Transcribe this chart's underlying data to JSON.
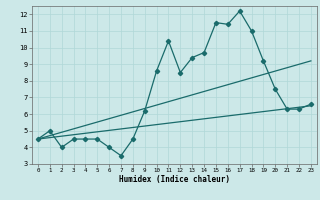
{
  "xlabel": "Humidex (Indice chaleur)",
  "xlim": [
    -0.5,
    23.5
  ],
  "ylim": [
    3,
    12.5
  ],
  "xticks": [
    0,
    1,
    2,
    3,
    4,
    5,
    6,
    7,
    8,
    9,
    10,
    11,
    12,
    13,
    14,
    15,
    16,
    17,
    18,
    19,
    20,
    21,
    22,
    23
  ],
  "yticks": [
    3,
    4,
    5,
    6,
    7,
    8,
    9,
    10,
    11,
    12
  ],
  "bg_color": "#cce8e8",
  "line_color": "#1a6b6b",
  "grid_color": "#b0d8d8",
  "line1_x": [
    0,
    1,
    2,
    3,
    4,
    5,
    6,
    7,
    8,
    9,
    10,
    11,
    12,
    13,
    14,
    15,
    16,
    17,
    18,
    19,
    20,
    21,
    22,
    23
  ],
  "line1_y": [
    4.5,
    5.0,
    4.0,
    4.5,
    4.5,
    4.5,
    4.0,
    3.5,
    4.5,
    6.2,
    8.6,
    10.4,
    8.5,
    9.4,
    9.7,
    11.5,
    11.4,
    12.2,
    11.0,
    9.2,
    7.5,
    6.3,
    6.3,
    6.6
  ],
  "line2_x": [
    0,
    23
  ],
  "line2_y": [
    4.5,
    6.5
  ],
  "line3_x": [
    0,
    23
  ],
  "line3_y": [
    4.5,
    9.2
  ]
}
